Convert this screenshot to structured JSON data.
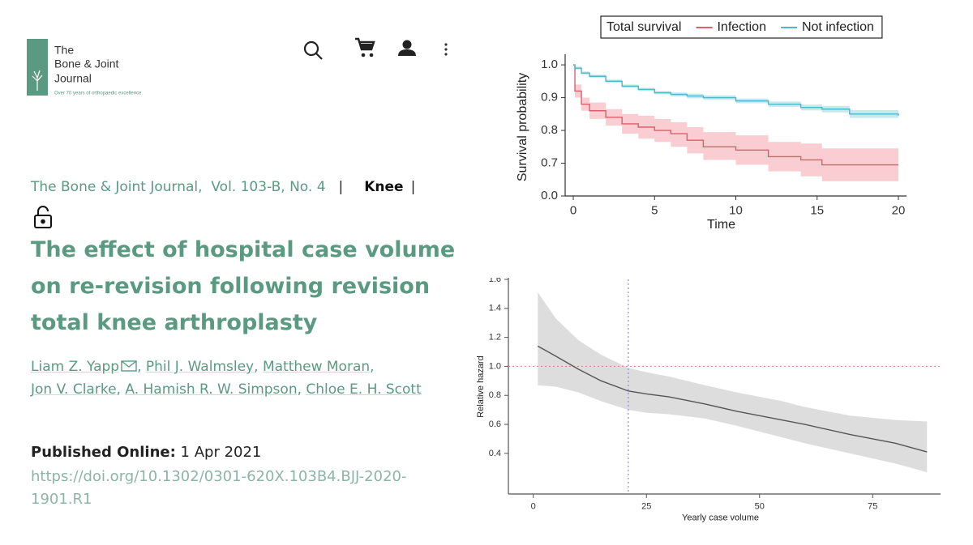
{
  "header": {
    "logo_lines": [
      "The",
      "Bone & Joint",
      "Journal"
    ],
    "tagline": "Over 70 years of orthopaedic excellence"
  },
  "article": {
    "journal": "The Bone & Joint Journal,",
    "volume": "Vol. 103-B, No. 4",
    "divider": "|",
    "section": "Knee",
    "title": "The effect of hospital case volume on re-revision following revision total knee arthroplasty",
    "authors": [
      "Liam Z. Yapp",
      "Phil J. Walmsley",
      "Matthew Moran",
      "Jon V. Clarke",
      "A. Hamish R. W. Simpson",
      "Chloe E. H. Scott"
    ],
    "author_separator": ",",
    "published_label": "Published Online:",
    "published_date": "1 Apr 2021",
    "doi": "https://doi.org/10.1302/0301-620X.103B4.BJJ-2020-1901.R1"
  },
  "chart_data": [
    {
      "type": "line",
      "step": true,
      "legend_title": "Total survival",
      "xlabel": "Time",
      "ylabel": "Survival probability",
      "xlim": [
        -0.5,
        20.5
      ],
      "xticks": [
        0,
        5,
        10,
        15,
        20
      ],
      "ylim": [
        0.6,
        1.02
      ],
      "y_axis_break": true,
      "yticks": [
        {
          "value": 0,
          "label": "0.0"
        },
        0.7,
        0.8,
        0.9,
        {
          "value": 1,
          "label": "1.0"
        }
      ],
      "x": [
        0,
        0.1,
        0.5,
        1,
        2,
        3,
        4,
        5,
        6,
        7,
        8,
        10,
        12,
        14,
        15.3,
        17,
        20
      ],
      "series": [
        {
          "name": "Infection",
          "color": "#dc5f6c",
          "band_color": "#f7c1c6",
          "values": [
            1.0,
            0.92,
            0.88,
            0.86,
            0.84,
            0.82,
            0.81,
            0.8,
            0.79,
            0.77,
            0.75,
            0.74,
            0.72,
            0.71,
            0.695,
            0.695,
            0.695
          ],
          "lower": [
            1.0,
            0.9,
            0.86,
            0.835,
            0.815,
            0.79,
            0.775,
            0.765,
            0.75,
            0.73,
            0.71,
            0.695,
            0.675,
            0.66,
            0.645,
            0.645,
            0.645
          ],
          "upper": [
            1.0,
            0.94,
            0.9,
            0.885,
            0.865,
            0.85,
            0.845,
            0.835,
            0.825,
            0.81,
            0.795,
            0.785,
            0.765,
            0.76,
            0.745,
            0.745,
            0.745
          ]
        },
        {
          "name": "Not infection",
          "color": "#4fb8c8",
          "band_color": "#b6e3ea",
          "values": [
            1.0,
            0.99,
            0.975,
            0.965,
            0.95,
            0.935,
            0.925,
            0.915,
            0.91,
            0.905,
            0.9,
            0.89,
            0.88,
            0.87,
            0.865,
            0.85,
            0.845
          ],
          "lower": [
            1.0,
            0.985,
            0.97,
            0.96,
            0.945,
            0.93,
            0.92,
            0.91,
            0.904,
            0.898,
            0.893,
            0.883,
            0.872,
            0.861,
            0.855,
            0.838,
            0.833
          ],
          "upper": [
            1.0,
            0.995,
            0.98,
            0.97,
            0.955,
            0.94,
            0.93,
            0.92,
            0.916,
            0.912,
            0.907,
            0.897,
            0.888,
            0.879,
            0.875,
            0.862,
            0.857
          ]
        }
      ]
    },
    {
      "type": "line",
      "xlabel": "Yearly case volume",
      "ylabel": "Relative hazard",
      "xlim": [
        -5.5,
        90
      ],
      "xticks": [
        0,
        25,
        50,
        75
      ],
      "ylim": [
        0.12,
        1.6
      ],
      "yticks": [
        0.4,
        0.6,
        0.8,
        {
          "value": 1,
          "label": "1.0"
        },
        1.2,
        1.4,
        1.6
      ],
      "reference_lines": {
        "x": 21,
        "y": 1
      },
      "x": [
        1,
        5,
        10,
        15,
        21,
        25,
        30,
        38,
        45,
        50,
        55,
        60,
        70,
        80,
        87
      ],
      "series": [
        {
          "color": "#555555",
          "band_color": "#d4d4d4",
          "values": [
            1.14,
            1.07,
            0.98,
            0.9,
            0.83,
            0.81,
            0.79,
            0.74,
            0.69,
            0.66,
            0.63,
            0.6,
            0.53,
            0.47,
            0.41
          ],
          "upper": [
            1.51,
            1.33,
            1.18,
            1.08,
            0.99,
            0.96,
            0.93,
            0.87,
            0.82,
            0.79,
            0.76,
            0.72,
            0.66,
            0.63,
            0.62
          ],
          "lower": [
            0.87,
            0.86,
            0.82,
            0.76,
            0.7,
            0.68,
            0.67,
            0.64,
            0.59,
            0.55,
            0.51,
            0.47,
            0.4,
            0.33,
            0.27
          ]
        }
      ]
    }
  ]
}
